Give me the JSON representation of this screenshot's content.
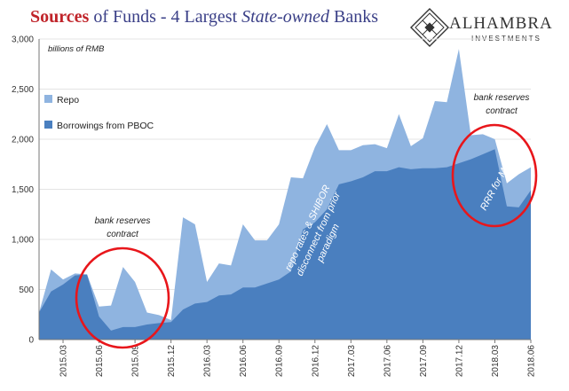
{
  "title": {
    "part1": "Sources",
    "part2": " of Funds - 4 Largest ",
    "part3": "State-owned",
    "part4": " Banks"
  },
  "logo": {
    "name": "ALHAMBRA",
    "sub": "INVESTMENTS"
  },
  "colors": {
    "repo": "#8fb4e0",
    "pboc": "#4a7fbf",
    "circle": "#e8161b",
    "title_dark": "#3a3f87",
    "title_red": "#c0242a"
  },
  "chart_data": {
    "type": "area",
    "stacked": true,
    "unit_label": "billions of RMB",
    "ylim": [
      0,
      3000
    ],
    "yticks": [
      0,
      500,
      1000,
      1500,
      2000,
      2500,
      3000
    ],
    "ytick_labels": [
      "0",
      "500",
      "1,000",
      "1,500",
      "2,000",
      "2,500",
      "3,000"
    ],
    "xtick_labels": [
      "2015.03",
      "2015.06",
      "2015.09",
      "2015.12",
      "2016.03",
      "2016.06",
      "2016.09",
      "2016.12",
      "2017.03",
      "2017.06",
      "2017.09",
      "2017.12",
      "2018.03",
      "2018.06"
    ],
    "x": [
      "2015.01",
      "2015.02",
      "2015.03",
      "2015.04",
      "2015.05",
      "2015.06",
      "2015.07",
      "2015.08",
      "2015.09",
      "2015.10",
      "2015.11",
      "2015.12",
      "2016.01",
      "2016.02",
      "2016.03",
      "2016.04",
      "2016.05",
      "2016.06",
      "2016.07",
      "2016.08",
      "2016.09",
      "2016.10",
      "2016.11",
      "2016.12",
      "2017.01",
      "2017.02",
      "2017.03",
      "2017.04",
      "2017.05",
      "2017.06",
      "2017.07",
      "2017.08",
      "2017.09",
      "2017.10",
      "2017.11",
      "2017.12",
      "2018.01",
      "2018.02",
      "2018.03",
      "2018.04",
      "2018.05",
      "2018.06"
    ],
    "series": [
      {
        "name": "Borrowings from PBOC",
        "values": [
          270,
          480,
          550,
          640,
          650,
          230,
          90,
          125,
          125,
          150,
          165,
          175,
          300,
          360,
          375,
          440,
          450,
          520,
          520,
          560,
          600,
          680,
          1100,
          1170,
          1300,
          1550,
          1580,
          1620,
          1680,
          1680,
          1720,
          1700,
          1710,
          1710,
          1720,
          1760,
          1800,
          1850,
          1900,
          1330,
          1320,
          1490
        ]
      },
      {
        "name": "Repo",
        "values": [
          0,
          220,
          50,
          20,
          0,
          100,
          250,
          600,
          450,
          120,
          80,
          20,
          920,
          790,
          200,
          320,
          290,
          630,
          470,
          430,
          550,
          940,
          510,
          750,
          850,
          340,
          310,
          320,
          270,
          230,
          530,
          230,
          300,
          670,
          650,
          1140,
          240,
          200,
          100,
          230,
          330,
          230
        ]
      }
    ],
    "legend": {
      "position": "top-left",
      "entries": [
        "Repo",
        "Borrowings from PBOC"
      ]
    },
    "annotations": {
      "left_note": [
        "bank reserves",
        "contract"
      ],
      "right_note": [
        "bank reserves",
        "contract"
      ],
      "mid_note": [
        "repo rates & SHIBOR",
        "disconnect from prior",
        "paradigm"
      ],
      "rrr_note": "RRR for MLF"
    }
  }
}
